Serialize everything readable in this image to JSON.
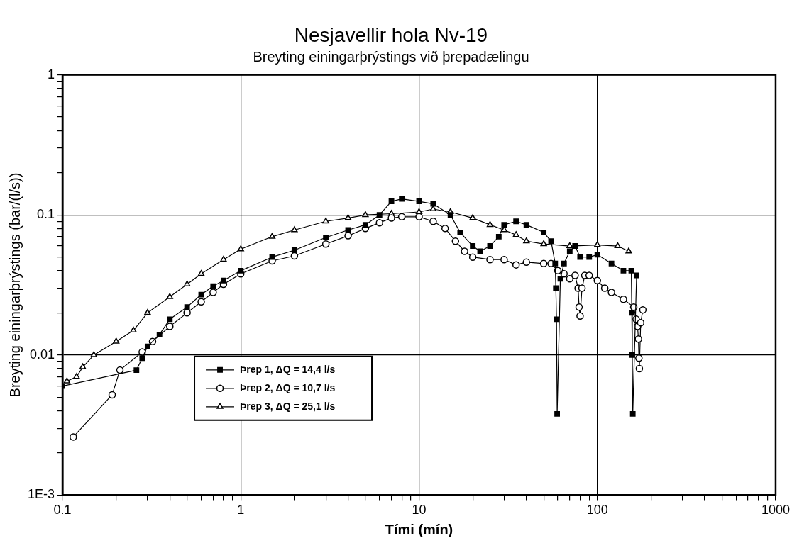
{
  "chart_data": {
    "type": "line",
    "title": "Nesjavellir hola Nv-19",
    "subtitle": "Breyting einingarþrýstings við þrepadælingu",
    "xlabel": "Tími (mín)",
    "ylabel": "Breyting einingarþrýstings (bar/(l/s))",
    "log": "xy",
    "xlim": [
      0.1,
      1000
    ],
    "ylim": [
      0.001,
      1
    ],
    "xticks": [
      0.1,
      {
        "value": 0.2,
        "label": null
      },
      {
        "value": 0.3,
        "label": null
      },
      {
        "value": 0.4,
        "label": null
      },
      {
        "value": 0.5,
        "label": null
      },
      {
        "value": 0.6,
        "label": null
      },
      {
        "value": 0.7,
        "label": null
      },
      {
        "value": 0.8,
        "label": null
      },
      {
        "value": 0.9,
        "label": null
      },
      1,
      {
        "value": 2,
        "label": null
      },
      {
        "value": 3,
        "label": null
      },
      {
        "value": 4,
        "label": null
      },
      {
        "value": 5,
        "label": null
      },
      {
        "value": 6,
        "label": null
      },
      {
        "value": 7,
        "label": null
      },
      {
        "value": 8,
        "label": null
      },
      {
        "value": 9,
        "label": null
      },
      10,
      {
        "value": 20,
        "label": null
      },
      {
        "value": 30,
        "label": null
      },
      {
        "value": 40,
        "label": null
      },
      {
        "value": 50,
        "label": null
      },
      {
        "value": 60,
        "label": null
      },
      {
        "value": 70,
        "label": null
      },
      {
        "value": 80,
        "label": null
      },
      {
        "value": 90,
        "label": null
      },
      100,
      {
        "value": 200,
        "label": null
      },
      {
        "value": 300,
        "label": null
      },
      {
        "value": 400,
        "label": null
      },
      {
        "value": 500,
        "label": null
      },
      {
        "value": 600,
        "label": null
      },
      {
        "value": 700,
        "label": null
      },
      {
        "value": 800,
        "label": null
      },
      {
        "value": 900,
        "label": null
      },
      1000
    ],
    "yticks": [
      {
        "value": 0.001,
        "label": "1E-3"
      },
      {
        "value": 0.002,
        "label": null
      },
      {
        "value": 0.003,
        "label": null
      },
      {
        "value": 0.004,
        "label": null
      },
      {
        "value": 0.005,
        "label": null
      },
      {
        "value": 0.006,
        "label": null
      },
      {
        "value": 0.007,
        "label": null
      },
      {
        "value": 0.008,
        "label": null
      },
      {
        "value": 0.009,
        "label": null
      },
      0.01,
      {
        "value": 0.02,
        "label": null
      },
      {
        "value": 0.03,
        "label": null
      },
      {
        "value": 0.04,
        "label": null
      },
      {
        "value": 0.05,
        "label": null
      },
      {
        "value": 0.06,
        "label": null
      },
      {
        "value": 0.07,
        "label": null
      },
      {
        "value": 0.08,
        "label": null
      },
      {
        "value": 0.09,
        "label": null
      },
      0.1,
      {
        "value": 0.2,
        "label": null
      },
      {
        "value": 0.3,
        "label": null
      },
      {
        "value": 0.4,
        "label": null
      },
      {
        "value": 0.5,
        "label": null
      },
      {
        "value": 0.6,
        "label": null
      },
      {
        "value": 0.7,
        "label": null
      },
      {
        "value": 0.8,
        "label": null
      },
      {
        "value": 0.9,
        "label": null
      },
      1
    ],
    "grid": true,
    "legend": "bottom",
    "line_style": "solid",
    "series": [
      {
        "name": "Þrep 1, ΔQ = 14,4 l/s",
        "color": "#000000",
        "marker": "square",
        "x": [
          0.1,
          0.26,
          0.28,
          0.3,
          0.35,
          0.4,
          0.5,
          0.6,
          0.7,
          0.8,
          1,
          1.5,
          2,
          3,
          4,
          5,
          6,
          7,
          8,
          10,
          12,
          15,
          17,
          20,
          22,
          25,
          28,
          30,
          35,
          40,
          50,
          55,
          58,
          58.5,
          59,
          59.5,
          62,
          65,
          70,
          75,
          80,
          90,
          100,
          120,
          140,
          155,
          156,
          157,
          158,
          166
        ],
        "values": [
          0.006,
          0.0078,
          0.0095,
          0.0115,
          0.014,
          0.018,
          0.022,
          0.027,
          0.031,
          0.034,
          0.04,
          0.05,
          0.056,
          0.069,
          0.078,
          0.085,
          0.1,
          0.125,
          0.13,
          0.125,
          0.12,
          0.1,
          0.075,
          0.06,
          0.055,
          0.06,
          0.07,
          0.085,
          0.09,
          0.085,
          0.075,
          0.065,
          0.045,
          0.03,
          0.018,
          0.0038,
          0.035,
          0.045,
          0.055,
          0.06,
          0.05,
          0.05,
          0.052,
          0.045,
          0.04,
          0.04,
          0.02,
          0.01,
          0.0038,
          0.037
        ]
      },
      {
        "name": "Þrep 2, ΔQ = 10,7 l/s",
        "color": "#000000",
        "marker": "circle",
        "x": [
          0.115,
          0.19,
          0.21,
          0.28,
          0.32,
          0.4,
          0.5,
          0.6,
          0.7,
          0.8,
          1,
          1.5,
          2,
          3,
          4,
          5,
          6,
          7,
          8,
          10,
          12,
          14,
          16,
          18,
          20,
          25,
          30,
          35,
          40,
          50,
          55,
          60,
          65,
          70,
          75,
          78,
          79,
          80,
          82,
          85,
          90,
          100,
          110,
          120,
          140,
          160,
          165,
          168,
          170,
          171,
          172,
          175,
          180
        ],
        "values": [
          0.0026,
          0.0052,
          0.0078,
          0.0105,
          0.0125,
          0.016,
          0.02,
          0.024,
          0.028,
          0.032,
          0.038,
          0.047,
          0.051,
          0.062,
          0.071,
          0.08,
          0.088,
          0.095,
          0.097,
          0.097,
          0.09,
          0.08,
          0.065,
          0.055,
          0.05,
          0.048,
          0.048,
          0.044,
          0.046,
          0.045,
          0.045,
          0.04,
          0.038,
          0.035,
          0.037,
          0.03,
          0.022,
          0.019,
          0.03,
          0.037,
          0.037,
          0.034,
          0.03,
          0.028,
          0.025,
          0.022,
          0.018,
          0.016,
          0.013,
          0.0095,
          0.008,
          0.017,
          0.021
        ]
      },
      {
        "name": "Þrep 3, ΔQ = 25,1 l/s",
        "color": "#000000",
        "marker": "triangle",
        "x": [
          0.106,
          0.12,
          0.13,
          0.15,
          0.2,
          0.25,
          0.3,
          0.4,
          0.5,
          0.6,
          0.8,
          1,
          1.5,
          2,
          3,
          4,
          5,
          7,
          10,
          12,
          15,
          20,
          25,
          30,
          35,
          40,
          50,
          70,
          100,
          130,
          150
        ],
        "values": [
          0.0065,
          0.007,
          0.0082,
          0.01,
          0.0125,
          0.015,
          0.02,
          0.026,
          0.032,
          0.038,
          0.048,
          0.057,
          0.07,
          0.078,
          0.09,
          0.095,
          0.1,
          0.102,
          0.105,
          0.11,
          0.105,
          0.095,
          0.085,
          0.078,
          0.072,
          0.065,
          0.062,
          0.06,
          0.061,
          0.06,
          0.055
        ]
      }
    ]
  }
}
